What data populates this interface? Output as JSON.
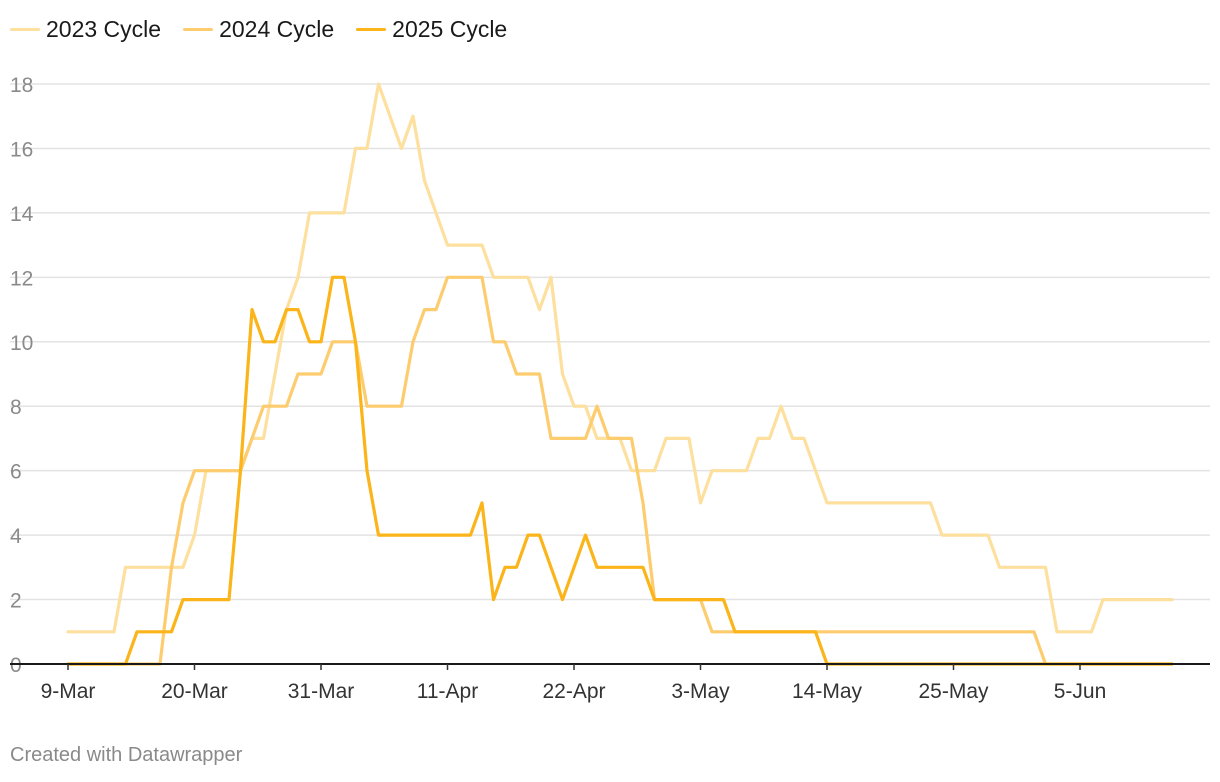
{
  "footer": "Created with Datawrapper",
  "chart_data": {
    "type": "line",
    "title": "",
    "xlabel": "",
    "ylabel": "",
    "x_start": "9-Mar",
    "x_end": "17-Jun",
    "x_ticks": [
      "9-Mar",
      "20-Mar",
      "31-Mar",
      "11-Apr",
      "22-Apr",
      "3-May",
      "14-May",
      "25-May",
      "5-Jun"
    ],
    "y_ticks": [
      0,
      2,
      4,
      6,
      8,
      10,
      12,
      14,
      16,
      18
    ],
    "ylim": [
      0,
      18
    ],
    "grid": "horizontal",
    "legend_position": "top-left",
    "series": [
      {
        "name": "2023 Cycle",
        "color": "#fddf9e",
        "points": [
          [
            "9-Mar",
            1
          ],
          [
            "13-Mar",
            1
          ],
          [
            "14-Mar",
            3
          ],
          [
            "19-Mar",
            3
          ],
          [
            "20-Mar",
            4
          ],
          [
            "21-Mar",
            6
          ],
          [
            "24-Mar",
            6
          ],
          [
            "25-Mar",
            7
          ],
          [
            "26-Mar",
            7
          ],
          [
            "27-Mar",
            9
          ],
          [
            "28-Mar",
            11
          ],
          [
            "29-Mar",
            12
          ],
          [
            "30-Mar",
            14
          ],
          [
            "2-Apr",
            14
          ],
          [
            "3-Apr",
            16
          ],
          [
            "4-Apr",
            16
          ],
          [
            "5-Apr",
            18
          ],
          [
            "7-Apr",
            16
          ],
          [
            "8-Apr",
            17
          ],
          [
            "9-Apr",
            15
          ],
          [
            "10-Apr",
            14
          ],
          [
            "11-Apr",
            13
          ],
          [
            "14-Apr",
            13
          ],
          [
            "15-Apr",
            12
          ],
          [
            "18-Apr",
            12
          ],
          [
            "19-Apr",
            11
          ],
          [
            "20-Apr",
            12
          ],
          [
            "21-Apr",
            9
          ],
          [
            "22-Apr",
            8
          ],
          [
            "23-Apr",
            8
          ],
          [
            "24-Apr",
            7
          ],
          [
            "26-Apr",
            7
          ],
          [
            "27-Apr",
            6
          ],
          [
            "29-Apr",
            6
          ],
          [
            "30-Apr",
            7
          ],
          [
            "2-May",
            7
          ],
          [
            "3-May",
            5
          ],
          [
            "4-May",
            6
          ],
          [
            "7-May",
            6
          ],
          [
            "8-May",
            7
          ],
          [
            "9-May",
            7
          ],
          [
            "10-May",
            8
          ],
          [
            "11-May",
            7
          ],
          [
            "12-May",
            7
          ],
          [
            "14-May",
            5
          ],
          [
            "23-May",
            5
          ],
          [
            "24-May",
            4
          ],
          [
            "28-May",
            4
          ],
          [
            "29-May",
            3
          ],
          [
            "2-Jun",
            3
          ],
          [
            "3-Jun",
            1
          ],
          [
            "6-Jun",
            1
          ],
          [
            "7-Jun",
            2
          ],
          [
            "13-Jun",
            2
          ]
        ]
      },
      {
        "name": "2024 Cycle",
        "color": "#fdcc6e",
        "points": [
          [
            "9-Mar",
            0
          ],
          [
            "17-Mar",
            0
          ],
          [
            "18-Mar",
            3
          ],
          [
            "19-Mar",
            5
          ],
          [
            "20-Mar",
            6
          ],
          [
            "24-Mar",
            6
          ],
          [
            "26-Mar",
            8
          ],
          [
            "28-Mar",
            8
          ],
          [
            "29-Mar",
            9
          ],
          [
            "31-Mar",
            9
          ],
          [
            "1-Apr",
            10
          ],
          [
            "3-Apr",
            10
          ],
          [
            "4-Apr",
            8
          ],
          [
            "7-Apr",
            8
          ],
          [
            "8-Apr",
            10
          ],
          [
            "9-Apr",
            11
          ],
          [
            "10-Apr",
            11
          ],
          [
            "11-Apr",
            12
          ],
          [
            "14-Apr",
            12
          ],
          [
            "15-Apr",
            10
          ],
          [
            "16-Apr",
            10
          ],
          [
            "17-Apr",
            9
          ],
          [
            "19-Apr",
            9
          ],
          [
            "20-Apr",
            7
          ],
          [
            "23-Apr",
            7
          ],
          [
            "24-Apr",
            8
          ],
          [
            "25-Apr",
            7
          ],
          [
            "27-Apr",
            7
          ],
          [
            "28-Apr",
            5
          ],
          [
            "29-Apr",
            2
          ],
          [
            "3-May",
            2
          ],
          [
            "4-May",
            1
          ],
          [
            "1-Jun",
            1
          ],
          [
            "2-Jun",
            0
          ],
          [
            "13-Jun",
            0
          ]
        ]
      },
      {
        "name": "2025 Cycle",
        "color": "#fbb419",
        "points": [
          [
            "9-Mar",
            0
          ],
          [
            "14-Mar",
            0
          ],
          [
            "15-Mar",
            1
          ],
          [
            "18-Mar",
            1
          ],
          [
            "19-Mar",
            2
          ],
          [
            "23-Mar",
            2
          ],
          [
            "24-Mar",
            6
          ],
          [
            "25-Mar",
            11
          ],
          [
            "26-Mar",
            10
          ],
          [
            "27-Mar",
            10
          ],
          [
            "28-Mar",
            11
          ],
          [
            "29-Mar",
            11
          ],
          [
            "30-Mar",
            10
          ],
          [
            "31-Mar",
            10
          ],
          [
            "1-Apr",
            12
          ],
          [
            "2-Apr",
            12
          ],
          [
            "3-Apr",
            10
          ],
          [
            "4-Apr",
            6
          ],
          [
            "5-Apr",
            4
          ],
          [
            "13-Apr",
            4
          ],
          [
            "14-Apr",
            5
          ],
          [
            "15-Apr",
            2
          ],
          [
            "16-Apr",
            3
          ],
          [
            "17-Apr",
            3
          ],
          [
            "18-Apr",
            4
          ],
          [
            "19-Apr",
            4
          ],
          [
            "21-Apr",
            2
          ],
          [
            "23-Apr",
            4
          ],
          [
            "24-Apr",
            3
          ],
          [
            "28-Apr",
            3
          ],
          [
            "29-Apr",
            2
          ],
          [
            "5-May",
            2
          ],
          [
            "6-May",
            1
          ],
          [
            "13-May",
            1
          ],
          [
            "14-May",
            0
          ],
          [
            "13-Jun",
            0
          ]
        ]
      }
    ]
  }
}
